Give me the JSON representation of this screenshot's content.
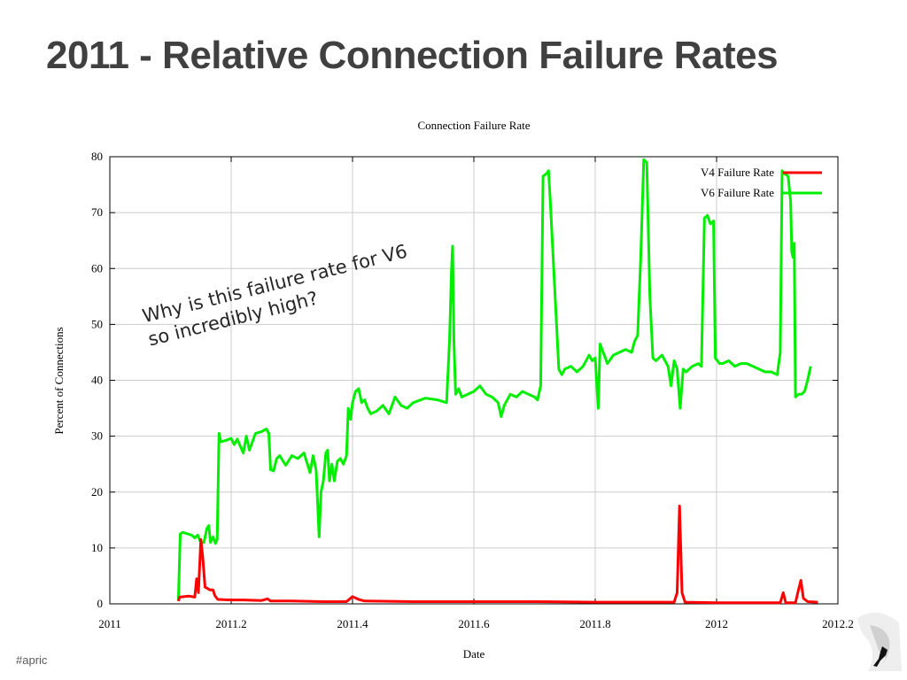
{
  "slide": {
    "title": "2011 - Relative Connection Failure Rates",
    "annotation": "Why is this failure rate for V6\nso incredibly high?",
    "footer": "#apric"
  },
  "chart_data": {
    "type": "line",
    "title": "Connection Failure Rate",
    "xlabel": "Date",
    "ylabel": "Percent of Connections",
    "xlim": [
      2011,
      2012.2
    ],
    "ylim": [
      0,
      80
    ],
    "x_ticks": [
      "2011",
      "2011.2",
      "2011.4",
      "2011.6",
      "2011.8",
      "2012",
      "2012.2"
    ],
    "y_ticks": [
      "0",
      "10",
      "20",
      "30",
      "40",
      "50",
      "60",
      "70",
      "80"
    ],
    "grid": true,
    "legend": "top-right",
    "series": [
      {
        "name": "V4 Failure Rate",
        "color": "#ff0000",
        "points": [
          [
            2011.113,
            0.5
          ],
          [
            2011.115,
            1.2
          ],
          [
            2011.13,
            1.4
          ],
          [
            2011.14,
            1.2
          ],
          [
            2011.143,
            4.5
          ],
          [
            2011.146,
            2.0
          ],
          [
            2011.15,
            11.5
          ],
          [
            2011.153,
            8.5
          ],
          [
            2011.157,
            3.0
          ],
          [
            2011.165,
            2.5
          ],
          [
            2011.17,
            2.5
          ],
          [
            2011.173,
            1.5
          ],
          [
            2011.178,
            0.8
          ],
          [
            2011.2,
            0.7
          ],
          [
            2011.22,
            0.7
          ],
          [
            2011.25,
            0.6
          ],
          [
            2011.26,
            0.9
          ],
          [
            2011.265,
            0.5
          ],
          [
            2011.3,
            0.5
          ],
          [
            2011.35,
            0.4
          ],
          [
            2011.39,
            0.4
          ],
          [
            2011.4,
            1.3
          ],
          [
            2011.41,
            0.8
          ],
          [
            2011.42,
            0.5
          ],
          [
            2011.5,
            0.4
          ],
          [
            2011.6,
            0.4
          ],
          [
            2011.7,
            0.4
          ],
          [
            2011.8,
            0.3
          ],
          [
            2011.9,
            0.3
          ],
          [
            2011.93,
            0.3
          ],
          [
            2011.935,
            2.0
          ],
          [
            2011.939,
            17.5
          ],
          [
            2011.943,
            2.0
          ],
          [
            2011.948,
            0.3
          ],
          [
            2012.0,
            0.2
          ],
          [
            2012.08,
            0.2
          ],
          [
            2012.105,
            0.2
          ],
          [
            2012.11,
            2.0
          ],
          [
            2012.114,
            0.2
          ],
          [
            2012.13,
            0.2
          ],
          [
            2012.135,
            2.5
          ],
          [
            2012.139,
            4.2
          ],
          [
            2012.143,
            1.0
          ],
          [
            2012.15,
            0.4
          ],
          [
            2012.167,
            0.3
          ]
        ]
      },
      {
        "name": "V6 Failure Rate",
        "color": "#00ee00",
        "points": [
          [
            2011.113,
            0.5
          ],
          [
            2011.116,
            12.5
          ],
          [
            2011.12,
            12.8
          ],
          [
            2011.135,
            12.3
          ],
          [
            2011.14,
            11.8
          ],
          [
            2011.145,
            12.3
          ],
          [
            2011.15,
            11.0
          ],
          [
            2011.155,
            11.0
          ],
          [
            2011.16,
            13.5
          ],
          [
            2011.163,
            14.0
          ],
          [
            2011.166,
            11.0
          ],
          [
            2011.17,
            12.0
          ],
          [
            2011.174,
            10.8
          ],
          [
            2011.177,
            11.5
          ],
          [
            2011.18,
            30.5
          ],
          [
            2011.183,
            29.0
          ],
          [
            2011.19,
            29.2
          ],
          [
            2011.2,
            29.6
          ],
          [
            2011.205,
            28.5
          ],
          [
            2011.21,
            29.5
          ],
          [
            2011.215,
            28.2
          ],
          [
            2011.22,
            27.0
          ],
          [
            2011.225,
            30.0
          ],
          [
            2011.23,
            27.5
          ],
          [
            2011.24,
            30.5
          ],
          [
            2011.25,
            30.8
          ],
          [
            2011.258,
            31.3
          ],
          [
            2011.262,
            30.5
          ],
          [
            2011.265,
            24.0
          ],
          [
            2011.27,
            23.8
          ],
          [
            2011.275,
            26.0
          ],
          [
            2011.28,
            26.5
          ],
          [
            2011.29,
            24.8
          ],
          [
            2011.3,
            26.5
          ],
          [
            2011.31,
            26.0
          ],
          [
            2011.32,
            27.0
          ],
          [
            2011.33,
            23.5
          ],
          [
            2011.335,
            26.5
          ],
          [
            2011.34,
            24.0
          ],
          [
            2011.345,
            12.0
          ],
          [
            2011.348,
            20.0
          ],
          [
            2011.352,
            22.0
          ],
          [
            2011.356,
            27.0
          ],
          [
            2011.359,
            27.5
          ],
          [
            2011.362,
            22.0
          ],
          [
            2011.366,
            25.0
          ],
          [
            2011.37,
            22.0
          ],
          [
            2011.375,
            25.5
          ],
          [
            2011.38,
            26.0
          ],
          [
            2011.385,
            25.0
          ],
          [
            2011.39,
            26.5
          ],
          [
            2011.393,
            35.0
          ],
          [
            2011.397,
            33.0
          ],
          [
            2011.4,
            36.0
          ],
          [
            2011.405,
            38.0
          ],
          [
            2011.41,
            38.5
          ],
          [
            2011.415,
            36.0
          ],
          [
            2011.42,
            36.5
          ],
          [
            2011.425,
            35.0
          ],
          [
            2011.43,
            34.0
          ],
          [
            2011.44,
            34.5
          ],
          [
            2011.45,
            35.5
          ],
          [
            2011.46,
            34.0
          ],
          [
            2011.47,
            37.0
          ],
          [
            2011.48,
            35.5
          ],
          [
            2011.49,
            35.0
          ],
          [
            2011.5,
            36.0
          ],
          [
            2011.52,
            36.8
          ],
          [
            2011.54,
            36.5
          ],
          [
            2011.555,
            36.0
          ],
          [
            2011.56,
            47.5
          ],
          [
            2011.563,
            59.5
          ],
          [
            2011.565,
            64.0
          ],
          [
            2011.567,
            47.5
          ],
          [
            2011.57,
            37.5
          ],
          [
            2011.575,
            38.5
          ],
          [
            2011.58,
            37.0
          ],
          [
            2011.6,
            38.0
          ],
          [
            2011.61,
            39.0
          ],
          [
            2011.62,
            37.5
          ],
          [
            2011.63,
            37.0
          ],
          [
            2011.64,
            36.0
          ],
          [
            2011.645,
            33.5
          ],
          [
            2011.65,
            35.5
          ],
          [
            2011.66,
            37.5
          ],
          [
            2011.67,
            37.0
          ],
          [
            2011.68,
            38.0
          ],
          [
            2011.69,
            37.5
          ],
          [
            2011.7,
            37.0
          ],
          [
            2011.705,
            36.5
          ],
          [
            2011.71,
            39.0
          ],
          [
            2011.714,
            76.5
          ],
          [
            2011.72,
            77.0
          ],
          [
            2011.723,
            77.5
          ],
          [
            2011.726,
            72.0
          ],
          [
            2011.74,
            42.0
          ],
          [
            2011.745,
            41.0
          ],
          [
            2011.75,
            42.0
          ],
          [
            2011.76,
            42.5
          ],
          [
            2011.77,
            41.5
          ],
          [
            2011.78,
            42.5
          ],
          [
            2011.79,
            44.5
          ],
          [
            2011.795,
            43.5
          ],
          [
            2011.8,
            44.0
          ],
          [
            2011.805,
            35.0
          ],
          [
            2011.808,
            46.5
          ],
          [
            2011.815,
            44.5
          ],
          [
            2011.82,
            43.0
          ],
          [
            2011.83,
            44.5
          ],
          [
            2011.84,
            45.0
          ],
          [
            2011.85,
            45.5
          ],
          [
            2011.86,
            45.0
          ],
          [
            2011.865,
            47.0
          ],
          [
            2011.87,
            48.0
          ],
          [
            2011.875,
            62.0
          ],
          [
            2011.88,
            79.5
          ],
          [
            2011.885,
            79.0
          ],
          [
            2011.89,
            55.0
          ],
          [
            2011.895,
            44.0
          ],
          [
            2011.9,
            43.5
          ],
          [
            2011.91,
            44.5
          ],
          [
            2011.92,
            42.5
          ],
          [
            2011.925,
            39.0
          ],
          [
            2011.93,
            43.5
          ],
          [
            2011.935,
            42.0
          ],
          [
            2011.94,
            35.0
          ],
          [
            2011.945,
            42.0
          ],
          [
            2011.95,
            41.5
          ],
          [
            2011.96,
            42.5
          ],
          [
            2011.97,
            43.0
          ],
          [
            2011.975,
            42.5
          ],
          [
            2011.98,
            69.0
          ],
          [
            2011.985,
            69.5
          ],
          [
            2011.99,
            68.0
          ],
          [
            2011.995,
            68.5
          ],
          [
            2011.998,
            44.0
          ],
          [
            2012.005,
            43.0
          ],
          [
            2012.01,
            43.0
          ],
          [
            2012.02,
            43.5
          ],
          [
            2012.03,
            42.5
          ],
          [
            2012.04,
            43.0
          ],
          [
            2012.05,
            43.0
          ],
          [
            2012.06,
            42.5
          ],
          [
            2012.07,
            42.0
          ],
          [
            2012.08,
            41.5
          ],
          [
            2012.09,
            41.5
          ],
          [
            2012.1,
            41.0
          ],
          [
            2012.105,
            45.0
          ],
          [
            2012.108,
            77.5
          ],
          [
            2012.112,
            77.0
          ],
          [
            2012.118,
            76.5
          ],
          [
            2012.122,
            72.0
          ],
          [
            2012.124,
            63.0
          ],
          [
            2012.126,
            62.0
          ],
          [
            2012.128,
            64.5
          ],
          [
            2012.13,
            37.0
          ],
          [
            2012.135,
            37.5
          ],
          [
            2012.14,
            37.5
          ],
          [
            2012.145,
            38.0
          ],
          [
            2012.15,
            40.0
          ],
          [
            2012.155,
            42.5
          ]
        ]
      }
    ]
  }
}
